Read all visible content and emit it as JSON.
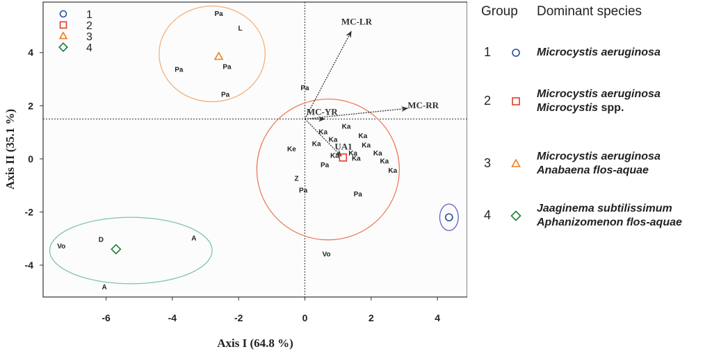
{
  "chart_data": {
    "type": "scatter",
    "subtype": "ordination biplot",
    "xlabel": "Axis I (64.8 %)",
    "ylabel": "Axis II (35.1 %)",
    "xlim": [
      -7.9,
      4.9
    ],
    "ylim": [
      -5.2,
      5.9
    ],
    "xticks": [
      -6,
      -4,
      -2,
      0,
      2,
      4
    ],
    "yticks": [
      -4,
      -2,
      0,
      2,
      4
    ],
    "reference_lines": {
      "x": 0,
      "y": 1.5
    },
    "legend": {
      "position": "top-left",
      "entries": [
        {
          "label": "1",
          "marker": "circle",
          "color": "#2b4a9c"
        },
        {
          "label": "2",
          "marker": "square",
          "color": "#e03a2a"
        },
        {
          "label": "3",
          "marker": "triangle",
          "color": "#f07d1f"
        },
        {
          "label": "4",
          "marker": "diamond",
          "color": "#1f7a3a"
        }
      ]
    },
    "centroids": [
      {
        "group": "1",
        "marker": "circle",
        "color": "#2b4a9c",
        "x": 4.35,
        "y": -2.2
      },
      {
        "group": "2",
        "marker": "square",
        "color": "#e03a2a",
        "x": 1.15,
        "y": 0.05
      },
      {
        "group": "3",
        "marker": "triangle",
        "color": "#f07d1f",
        "x": -2.6,
        "y": 3.85
      },
      {
        "group": "4",
        "marker": "diamond",
        "color": "#1f7a3a",
        "x": -5.7,
        "y": -3.4
      }
    ],
    "ellipses": [
      {
        "group": "1",
        "color": "#5a5fc8",
        "cx": 4.35,
        "cy": -2.2,
        "rx": 0.28,
        "ry": 0.5
      },
      {
        "group": "2",
        "color": "#ee7a5a",
        "cx": 0.7,
        "cy": -0.4,
        "rx": 2.15,
        "ry": 2.65
      },
      {
        "group": "3",
        "color": "#f4b07a",
        "cx": -2.8,
        "cy": 3.95,
        "rx": 1.6,
        "ry": 1.8
      },
      {
        "group": "4",
        "color": "#7fc4a6",
        "cx": -5.25,
        "cy": -3.45,
        "rx": 2.45,
        "ry": 1.25
      }
    ],
    "vectors": [
      {
        "label": "MC-LR",
        "x": 1.4,
        "y": 4.8,
        "label_x": 1.1,
        "label_y": 5.05
      },
      {
        "label": "MC-RR",
        "x": 3.1,
        "y": 1.9,
        "label_x": 3.1,
        "label_y": 1.9
      },
      {
        "label": "MC-YR",
        "x": 0.6,
        "y": 1.5,
        "label_x": 0.05,
        "label_y": 1.65
      },
      {
        "label": "UA1",
        "x": 1.1,
        "y": 0.1,
        "label_x": 0.9,
        "label_y": 0.35
      }
    ],
    "site_labels": [
      {
        "label": "Pa",
        "x": -2.6,
        "y": 5.45
      },
      {
        "label": "L",
        "x": -1.95,
        "y": 4.9
      },
      {
        "label": "Pa",
        "x": -3.8,
        "y": 3.35
      },
      {
        "label": "Pa",
        "x": -2.35,
        "y": 3.45
      },
      {
        "label": "Pa",
        "x": -2.4,
        "y": 2.4
      },
      {
        "label": "Pa",
        "x": 0.0,
        "y": 2.65
      },
      {
        "label": "Ka",
        "x": 0.55,
        "y": 1.0
      },
      {
        "label": "Ka",
        "x": 1.25,
        "y": 1.2
      },
      {
        "label": "Ka",
        "x": 0.35,
        "y": 0.55
      },
      {
        "label": "Ka",
        "x": 0.85,
        "y": 0.7
      },
      {
        "label": "Ke",
        "x": -0.4,
        "y": 0.35
      },
      {
        "label": "Ka",
        "x": 1.75,
        "y": 0.85
      },
      {
        "label": "Ka",
        "x": 1.85,
        "y": 0.5
      },
      {
        "label": "Ka",
        "x": 1.45,
        "y": 0.2
      },
      {
        "label": "Ka",
        "x": 0.9,
        "y": 0.1
      },
      {
        "label": "Ka",
        "x": 1.55,
        "y": 0.0
      },
      {
        "label": "Ka",
        "x": 2.2,
        "y": 0.2
      },
      {
        "label": "Ka",
        "x": 2.4,
        "y": -0.1
      },
      {
        "label": "Pa",
        "x": 0.6,
        "y": -0.25
      },
      {
        "label": "Ka",
        "x": 2.65,
        "y": -0.45
      },
      {
        "label": "Z",
        "x": -0.25,
        "y": -0.75
      },
      {
        "label": "Pa",
        "x": -0.05,
        "y": -1.2
      },
      {
        "label": "Pa",
        "x": 1.6,
        "y": -1.35
      },
      {
        "label": "Vo",
        "x": 0.65,
        "y": -3.6
      },
      {
        "label": "D",
        "x": -6.15,
        "y": -3.05
      },
      {
        "label": "A",
        "x": -3.35,
        "y": -3.0
      },
      {
        "label": "Vo",
        "x": -7.35,
        "y": -3.3
      },
      {
        "label": "A",
        "x": -6.05,
        "y": -4.85
      }
    ]
  },
  "legend_panel": {
    "header_group": "Group",
    "header_species": "Dominant species",
    "rows": [
      {
        "group": "1",
        "marker": "circle",
        "color": "#2b4a9c",
        "lines": [
          [
            "Microcystis aeruginosa",
            ""
          ]
        ]
      },
      {
        "group": "2",
        "marker": "square",
        "color": "#e03a2a",
        "lines": [
          [
            "Microcystis aeruginosa",
            ""
          ],
          [
            "Microcystis",
            " spp."
          ]
        ]
      },
      {
        "group": "3",
        "marker": "triangle",
        "color": "#f07d1f",
        "lines": [
          [
            "Microcystis aeruginosa",
            ""
          ],
          [
            "Anabaena flos-aquae",
            ""
          ]
        ]
      },
      {
        "group": "4",
        "marker": "diamond",
        "color": "#1f7a3a",
        "lines": [
          [
            "Jaaginema subtilissimum",
            ""
          ],
          [
            "Aphanizomenon flos-aquae",
            ""
          ]
        ]
      }
    ]
  }
}
